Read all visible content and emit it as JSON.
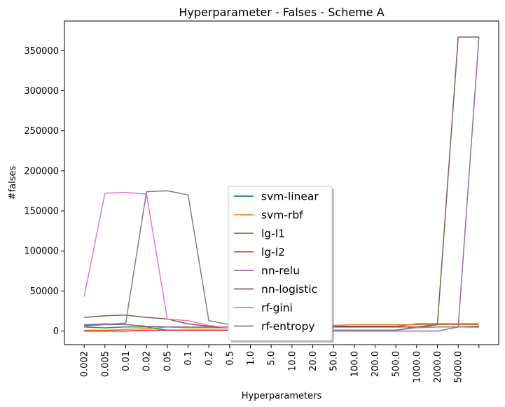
{
  "chart_data": {
    "type": "line",
    "title": "Hyperparameter - Falses - Scheme A",
    "x_label": "Hyperparameters",
    "y_label": "#falses",
    "categories": [
      "0.002",
      "0.005",
      "0.01",
      "0.02",
      "0.05",
      "0.1",
      "0.2",
      "0.5",
      "1.0",
      "5.0",
      "10.0",
      "20.0",
      "50.0",
      "100.0",
      "200.0",
      "500.0",
      "1000.0",
      "2000.0",
      "5000.0",
      null
    ],
    "ylim": [
      -17000,
      387000
    ],
    "yticks": [
      0,
      50000,
      100000,
      150000,
      200000,
      250000,
      300000,
      350000
    ],
    "legend": "lower center",
    "series": [
      {
        "name": "svm-linear",
        "color": "#1f77b4",
        "values": [
          7000,
          8000,
          8000,
          6000,
          5000,
          5000,
          5000,
          5000,
          5000,
          5000,
          5000,
          5000,
          6000,
          6000,
          6000,
          6000,
          9000,
          9000,
          9000,
          9000
        ]
      },
      {
        "name": "svm-rbf",
        "color": "#ff7f0e",
        "values": [
          1000,
          1000,
          2000,
          3000,
          5000,
          4000,
          4000,
          4000,
          5000,
          5000,
          5000,
          6000,
          7000,
          8000,
          8000,
          8000,
          8000,
          8000,
          8000,
          8000
        ]
      },
      {
        "name": "lg-l1",
        "color": "#2ca02c",
        "values": [
          5000,
          4000,
          5000,
          5000,
          1000,
          1000,
          1000,
          1000,
          1000,
          2000,
          3000,
          4000,
          5000,
          5000,
          5000,
          5000,
          5000,
          5000,
          5000,
          5000
        ]
      },
      {
        "name": "lg-l2",
        "color": "#d62728",
        "values": [
          0,
          0,
          0,
          1000,
          1000,
          1000,
          1000,
          1000,
          1000,
          2000,
          3000,
          4000,
          5000,
          5000,
          5000,
          5000,
          5000,
          5000,
          5000,
          5000
        ]
      },
      {
        "name": "nn-relu",
        "color": "#9467bd",
        "values": [
          8000,
          9000,
          8000,
          6000,
          5000,
          5000,
          5000,
          4000,
          3000,
          2000,
          1000,
          1000,
          0,
          0,
          0,
          0,
          0,
          0,
          5000,
          367000
        ]
      },
      {
        "name": "nn-logistic",
        "color": "#8c564b",
        "values": [
          17000,
          19000,
          20000,
          17000,
          15000,
          9000,
          6000,
          4000,
          3000,
          2000,
          1000,
          1000,
          1000,
          1000,
          1000,
          1000,
          5000,
          8000,
          367000,
          367000
        ]
      },
      {
        "name": "rf-gini",
        "color": "#e377c2",
        "values": [
          43000,
          172000,
          173000,
          171000,
          15000,
          13000,
          7000,
          4000,
          3000,
          2000,
          1000,
          1000,
          1000,
          1000,
          1000,
          1000,
          4000,
          5000,
          5000,
          6000
        ]
      },
      {
        "name": "rf-entropy",
        "color": "#7f7f7f",
        "values": [
          6000,
          8000,
          10000,
          174000,
          175000,
          170000,
          13000,
          8000,
          4000,
          2000,
          1000,
          1000,
          1000,
          1000,
          1000,
          1000,
          5000,
          5000,
          5000,
          6000
        ]
      }
    ]
  }
}
